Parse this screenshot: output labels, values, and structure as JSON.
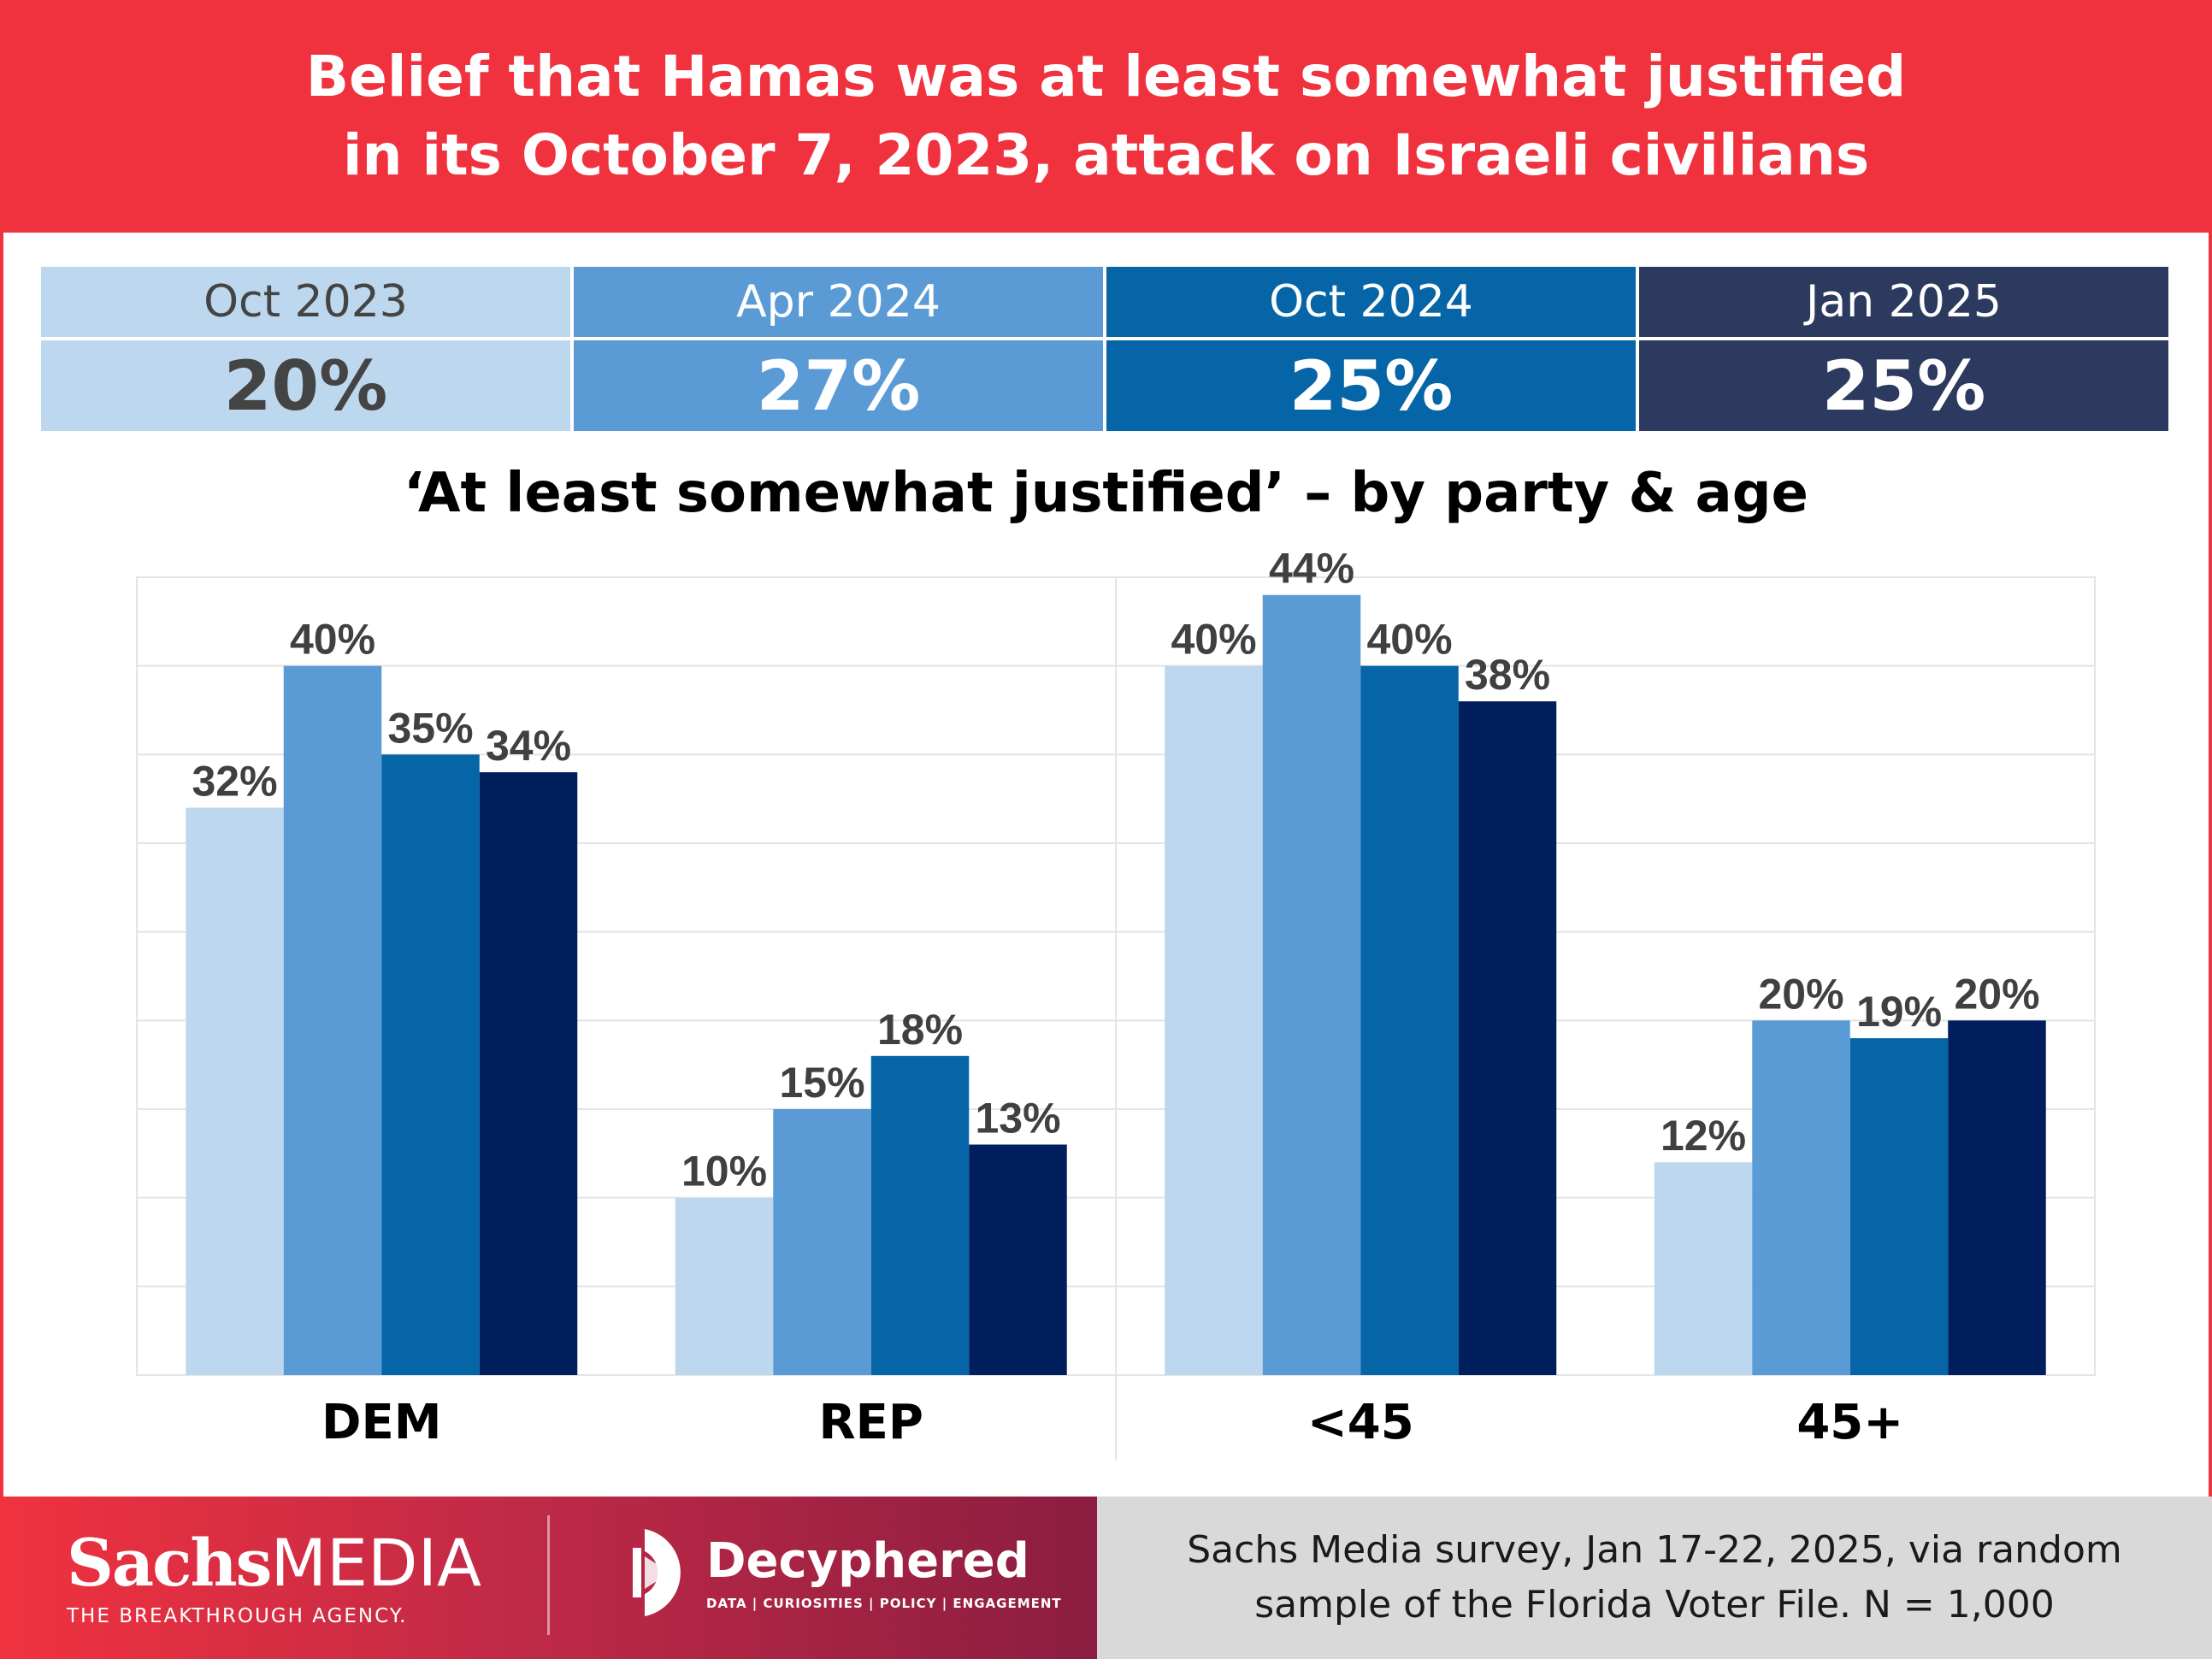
{
  "header": {
    "title_line1": "Belief that Hamas was at least somewhat justified",
    "title_line2": "in its October 7, 2023, attack on Israeli civilians"
  },
  "summary": [
    {
      "label": "Oct 2023",
      "value": "20%"
    },
    {
      "label": "Apr 2024",
      "value": "27%"
    },
    {
      "label": "Oct 2024",
      "value": "25%"
    },
    {
      "label": "Jan 2025",
      "value": "25%"
    }
  ],
  "colors": {
    "brand_red": "#f0323f",
    "series": [
      "#bdd7ee",
      "#5b9bd5",
      "#0565a6",
      "#001f5c"
    ],
    "summary_text": [
      "#444444",
      "#ffffff",
      "#ffffff",
      "#ffffff"
    ],
    "summary_bg": [
      "#bdd7ee",
      "#5b9bd5",
      "#0565a6",
      "#2b3a5e"
    ]
  },
  "chart_data": {
    "type": "bar",
    "title": "‘At least somewhat justified’ – by party & age",
    "categories": [
      "DEM",
      "REP",
      "<45",
      "45+"
    ],
    "series": [
      {
        "name": "Oct 2023",
        "values": [
          32,
          10,
          40,
          12
        ]
      },
      {
        "name": "Apr 2024",
        "values": [
          40,
          15,
          44,
          20
        ]
      },
      {
        "name": "Oct 2024",
        "values": [
          35,
          18,
          40,
          19
        ]
      },
      {
        "name": "Jan 2025",
        "values": [
          34,
          13,
          38,
          20
        ]
      }
    ],
    "ylim": [
      0,
      45
    ],
    "grid": true,
    "value_suffix": "%",
    "xlabel": "",
    "ylabel": ""
  },
  "footer": {
    "sachs_word": "Sachs",
    "media_word": "MEDIA",
    "sachs_tagline": "THE BREAKTHROUGH AGENCY.",
    "decyphered_name": "Decyphered",
    "decyphered_tagline": "DATA | CURIOSITIES | POLICY | ENGAGEMENT",
    "source_line1": "Sachs Media survey, Jan 17-22, 2025, via random",
    "source_line2": "sample of the Florida Voter File. N = 1,000"
  }
}
